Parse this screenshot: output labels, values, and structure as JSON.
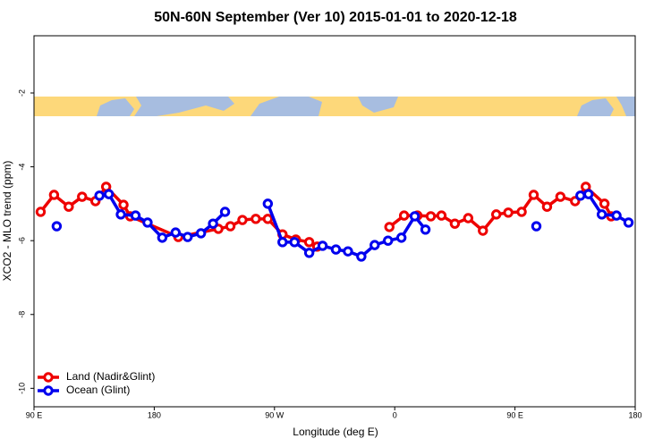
{
  "chart_data": {
    "type": "line",
    "title": "50N-60N September (Ver 10)   2015-01-01 to 2020-12-18",
    "x_label": "Longitude (deg E)",
    "y_label": "XCO2 - MLO trend (ppm)",
    "xlim": [
      90,
      540
    ],
    "xticks": [
      {
        "value": 90,
        "label": "90 E"
      },
      180,
      {
        "value": 270,
        "label": "90 W"
      },
      {
        "value": 360,
        "label": "0"
      },
      {
        "value": 450,
        "label": "90 E"
      },
      {
        "value": 540,
        "label": "180"
      }
    ],
    "ylim": [
      -10.5,
      -0.45
    ],
    "yticks": [
      -2,
      -4,
      -6,
      -8,
      -10
    ],
    "legend": "bottom-left",
    "series": [
      {
        "name": "Land (Nadir&Glint)",
        "color": "#ee0000",
        "x": [
          95,
          105,
          116,
          126,
          136,
          144,
          157,
          162,
          198,
          228,
          237,
          246,
          256,
          265,
          276,
          286,
          296,
          302,
          null,
          356,
          367,
          377,
          387,
          395,
          405,
          415,
          426,
          436,
          445,
          455,
          464,
          474,
          484,
          495,
          503,
          517,
          522
        ],
        "values": [
          -5.22,
          -4.76,
          -5.08,
          -4.81,
          -4.93,
          -4.54,
          -5.03,
          -5.34,
          -5.9,
          -5.68,
          -5.61,
          -5.44,
          -5.41,
          -5.41,
          -5.83,
          -5.97,
          -6.04,
          -6.16,
          null,
          -5.63,
          -5.32,
          -5.32,
          -5.34,
          -5.32,
          -5.54,
          -5.39,
          -5.73,
          -5.29,
          -5.24,
          -5.22,
          -4.76,
          -5.08,
          -4.81,
          -4.93,
          -4.54,
          -5.0,
          -5.34
        ]
      },
      {
        "name": "Ocean (Glint)",
        "color": "#0000ee",
        "x": [
          107,
          null,
          139,
          146,
          155,
          166,
          175,
          186,
          196,
          205,
          215,
          224,
          233,
          null,
          265,
          276,
          285,
          296,
          306,
          316,
          325,
          335,
          345,
          355,
          365,
          375,
          383,
          null,
          466,
          null,
          499,
          505,
          515,
          526,
          535
        ],
        "values": [
          -5.61,
          null,
          -4.78,
          -4.74,
          -5.29,
          -5.32,
          -5.51,
          -5.92,
          -5.78,
          -5.9,
          -5.8,
          -5.54,
          -5.22,
          null,
          -5.0,
          -6.04,
          -6.04,
          -6.33,
          -6.14,
          -6.24,
          -6.29,
          -6.43,
          -6.12,
          -6.0,
          -5.92,
          -5.34,
          -5.7,
          null,
          -5.61,
          null,
          -4.78,
          -4.74,
          -5.29,
          -5.32,
          -5.51
        ]
      }
    ]
  }
}
